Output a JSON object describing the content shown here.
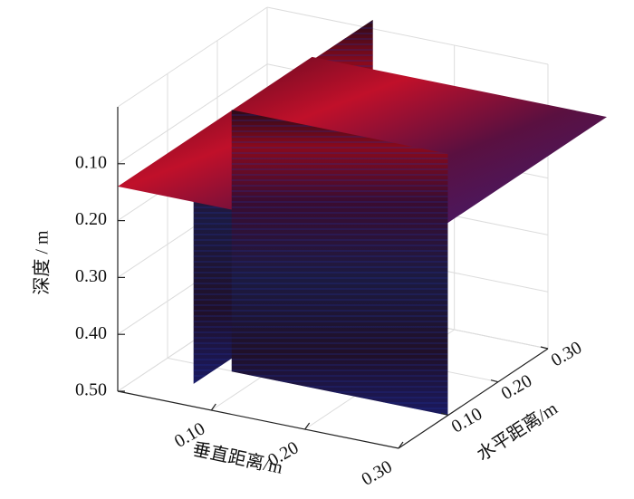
{
  "chart_data": {
    "type": "slice3d",
    "zlabel": "深度 / m",
    "ulabel": "垂直距离/m",
    "wlabel": "水平距离/m",
    "zlim": [
      0,
      0.5
    ],
    "zticks": [
      {
        "value": 0.1,
        "label": "0.10"
      },
      {
        "value": 0.2,
        "label": "0.20"
      },
      {
        "value": 0.3,
        "label": "0.30"
      },
      {
        "value": 0.4,
        "label": "0.40"
      },
      {
        "value": 0.5,
        "label": "0.50"
      }
    ],
    "ulim": [
      0,
      0.3
    ],
    "uticks": [
      {
        "value": 0.1,
        "label": "0.10"
      },
      {
        "value": 0.2,
        "label": "0.20"
      },
      {
        "value": 0.3,
        "label": "0.30"
      }
    ],
    "wlim": [
      0,
      0.3
    ],
    "wticks": [
      {
        "value": 0.1,
        "label": "0.10"
      },
      {
        "value": 0.2,
        "label": "0.20"
      },
      {
        "value": 0.3,
        "label": "0.30"
      }
    ],
    "grid": true
  }
}
